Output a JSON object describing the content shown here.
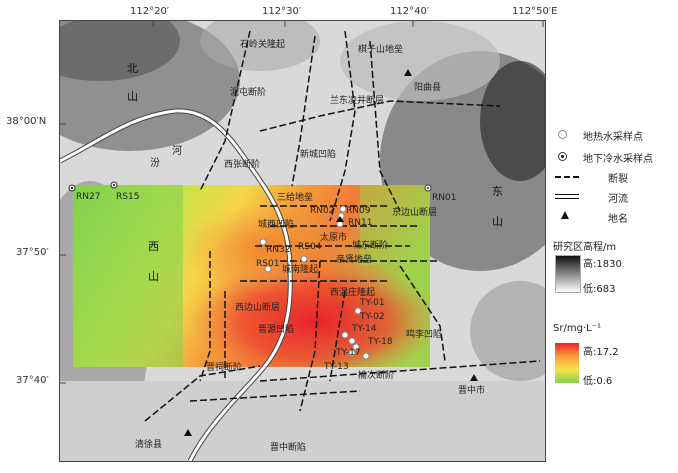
{
  "map": {
    "top_ticks": [
      "112°20′",
      "112°30′",
      "112°40′",
      "112°50′E"
    ],
    "left_ticks": [
      "38°00′N",
      "37°50′",
      "37°40′"
    ],
    "legend": {
      "hot_sample": "地热水采样点",
      "cold_sample": "地下冷水采样点",
      "fault": "断裂",
      "river": "河流",
      "place": "地名",
      "elev_title": "研究区高程/m",
      "elev_high": "高:1830",
      "elev_low": "低:683",
      "sr_title": "Sr/mg·L⁻¹",
      "sr_high": "高:17.2",
      "sr_low": "低:0.6"
    },
    "places": {
      "yangqu": "阳曲县",
      "jinzhong": "晋中市",
      "qingxu": "清徐县",
      "taiyuan": "太原市"
    },
    "mountains": {
      "beishan_a": "北",
      "beishan_b": "山",
      "xishan_a": "西",
      "xishan_b": "山",
      "dongshan_a": "东",
      "dongshan_b": "山",
      "fenhe_a": "汾",
      "fenhe_b": "河"
    },
    "samples": {
      "rn27": "RN27",
      "rs15": "RS15",
      "rn01": "RN01",
      "rn02": "RN02",
      "rn09": "RN09",
      "rn11": "RN11",
      "rn32": "RN32",
      "rs04": "RS04",
      "rs01": "RS01",
      "ty01": "TY-01",
      "ty02": "TY-02",
      "ty14": "TY-14",
      "ty18": "TY-18",
      "ty17": "TY-17",
      "ty13": "TY-13"
    },
    "faults": {
      "shiling": "石岭关隆起",
      "nidun": "泥屯断阶",
      "langjing": "兰东凌井断层",
      "qizi": "棋子山地垒",
      "xizhang": "西张断阶",
      "sanjia": "三给地垒",
      "xincheng": "新城凹陷",
      "dongbian": "东边山断层",
      "xibian": "西边山断层",
      "chengxi": "城西凹陷",
      "chengdong": "城东断阶",
      "qiangu": "亲贤地垒",
      "chengnan": "城南隆起",
      "jinci": "晋祠断阶",
      "xiwen": "西温庄隆起",
      "jinyuan": "晋源凹陷",
      "yuci": "榆次断阶",
      "jinzhong_fault": "晋中断陷",
      "mingli": "鸣李凹陷"
    }
  }
}
